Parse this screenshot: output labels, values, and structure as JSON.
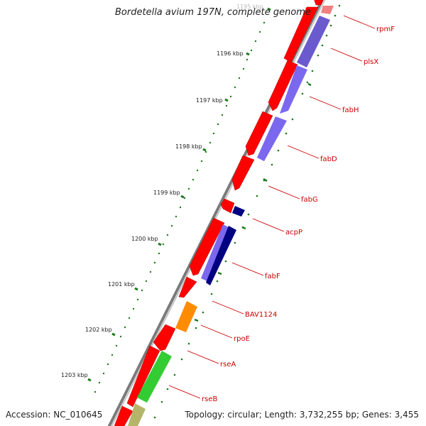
{
  "title": "Bordetella avium 197N, complete genome",
  "accession": "Accession: NC_010645",
  "topology": "Topology: circular; Length: 3,732,255 bp; Genes: 3,455",
  "colors": {
    "forward_cds": "#ff0000",
    "reverse_cds": "#0000ff",
    "gene_label": "#cc0000",
    "tick_mark": "#1f7a1f",
    "backbone": "#808080",
    "rpoE_gene": "#ff8c00",
    "rseA_gene": "#33cc33",
    "rseB_gene": "#b5b56a"
  },
  "ticks": [
    {
      "label": "1195 kbp"
    },
    {
      "label": "1196 kbp"
    },
    {
      "label": "1197 kbp"
    },
    {
      "label": "1198 kbp"
    },
    {
      "label": "1199 kbp"
    },
    {
      "label": "1200 kbp"
    },
    {
      "label": "1201 kbp"
    },
    {
      "label": "1202 kbp"
    },
    {
      "label": "1203 kbp"
    }
  ],
  "genes": [
    {
      "name": "rpmF"
    },
    {
      "name": "plsX"
    },
    {
      "name": "fabH"
    },
    {
      "name": "fabD"
    },
    {
      "name": "fabG"
    },
    {
      "name": "acpP"
    },
    {
      "name": "fabF"
    },
    {
      "name": "BAV1124"
    },
    {
      "name": "rpoE"
    },
    {
      "name": "rseA"
    },
    {
      "name": "rseB"
    }
  ]
}
